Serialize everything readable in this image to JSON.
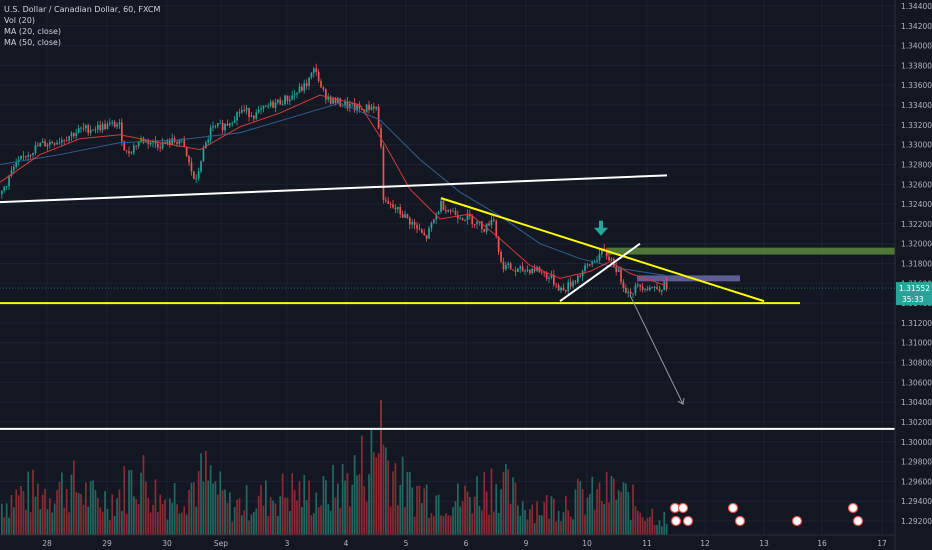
{
  "chart_data": {
    "type": "line",
    "title": "U.S. Dollar / Canadian Dollar, 60, FXCM",
    "indicators": [
      "Vol (20)",
      "MA (20, close)",
      "MA (50, close)"
    ],
    "x_tick_labels": [
      "28",
      "29",
      "30",
      "Sep",
      "3",
      "4",
      "5",
      "6",
      "9",
      "10",
      "11",
      "12",
      "13",
      "16",
      "17"
    ],
    "y_tick_labels": [
      "1.34400",
      "1.34200",
      "1.34000",
      "1.33800",
      "1.33600",
      "1.33400",
      "1.33200",
      "1.33000",
      "1.32800",
      "1.32600",
      "1.32400",
      "1.32200",
      "1.32000",
      "1.31800",
      "1.31600",
      "1.31400",
      "1.31200",
      "1.31000",
      "1.30800",
      "1.30600",
      "1.30400",
      "1.30200",
      "1.30000",
      "1.29800",
      "1.29600",
      "1.29400",
      "1.29200"
    ],
    "ylim": [
      1.292,
      1.344
    ],
    "current_price": "1.31552",
    "countdown": "35:33",
    "price_path": [
      [
        0,
        1.325
      ],
      [
        12,
        1.3275
      ],
      [
        25,
        1.329
      ],
      [
        40,
        1.33
      ],
      [
        60,
        1.3305
      ],
      [
        80,
        1.3315
      ],
      [
        100,
        1.3318
      ],
      [
        118,
        1.3321
      ],
      [
        125,
        1.329
      ],
      [
        140,
        1.3305
      ],
      [
        160,
        1.33
      ],
      [
        180,
        1.3305
      ],
      [
        195,
        1.326
      ],
      [
        200,
        1.3285
      ],
      [
        210,
        1.3315
      ],
      [
        225,
        1.332
      ],
      [
        240,
        1.3335
      ],
      [
        255,
        1.333
      ],
      [
        270,
        1.334
      ],
      [
        290,
        1.3348
      ],
      [
        305,
        1.336
      ],
      [
        315,
        1.3378
      ],
      [
        320,
        1.3355
      ],
      [
        330,
        1.3345
      ],
      [
        345,
        1.334
      ],
      [
        360,
        1.3335
      ],
      [
        375,
        1.334
      ],
      [
        380,
        1.33
      ],
      [
        383,
        1.324
      ],
      [
        395,
        1.3235
      ],
      [
        410,
        1.3222
      ],
      [
        425,
        1.3205
      ],
      [
        440,
        1.324
      ],
      [
        455,
        1.323
      ],
      [
        470,
        1.3225
      ],
      [
        485,
        1.3215
      ],
      [
        492,
        1.323
      ],
      [
        500,
        1.318
      ],
      [
        515,
        1.3172
      ],
      [
        535,
        1.3175
      ],
      [
        550,
        1.3165
      ],
      [
        562,
        1.3152
      ],
      [
        575,
        1.3165
      ],
      [
        590,
        1.318
      ],
      [
        602,
        1.3192
      ],
      [
        612,
        1.3182
      ],
      [
        620,
        1.3165
      ],
      [
        627,
        1.315
      ],
      [
        640,
        1.3158
      ],
      [
        655,
        1.3155
      ],
      [
        665,
        1.3158
      ]
    ],
    "ma_fast": [
      [
        0,
        1.3262
      ],
      [
        40,
        1.329
      ],
      [
        80,
        1.3306
      ],
      [
        120,
        1.331
      ],
      [
        160,
        1.3302
      ],
      [
        200,
        1.3295
      ],
      [
        240,
        1.3318
      ],
      [
        280,
        1.3332
      ],
      [
        320,
        1.335
      ],
      [
        360,
        1.334
      ],
      [
        385,
        1.33
      ],
      [
        410,
        1.3255
      ],
      [
        440,
        1.3225
      ],
      [
        470,
        1.323
      ],
      [
        500,
        1.3205
      ],
      [
        530,
        1.3178
      ],
      [
        560,
        1.3165
      ],
      [
        590,
        1.3172
      ],
      [
        610,
        1.3182
      ],
      [
        630,
        1.317
      ],
      [
        665,
        1.3158
      ]
    ],
    "ma_slow": [
      [
        0,
        1.328
      ],
      [
        60,
        1.329
      ],
      [
        120,
        1.3302
      ],
      [
        180,
        1.3305
      ],
      [
        240,
        1.3312
      ],
      [
        300,
        1.333
      ],
      [
        340,
        1.3342
      ],
      [
        380,
        1.3325
      ],
      [
        420,
        1.3285
      ],
      [
        460,
        1.3252
      ],
      [
        500,
        1.3228
      ],
      [
        540,
        1.32
      ],
      [
        580,
        1.3185
      ],
      [
        620,
        1.3175
      ],
      [
        665,
        1.3168
      ]
    ],
    "trendlines": [
      {
        "color": "#ffffff",
        "from": [
          0,
          1.3242
        ],
        "to": [
          667,
          1.3269
        ]
      },
      {
        "color": "#ffff00",
        "from": [
          441,
          1.3246
        ],
        "to": [
          764,
          1.3142
        ]
      },
      {
        "color": "#ffff00",
        "from": [
          0,
          1.314
        ],
        "to": [
          800,
          1.314
        ]
      },
      {
        "color": "#ffffff",
        "from": [
          560,
          1.3142
        ],
        "to": [
          640,
          1.32
        ]
      },
      {
        "color": "#ffffff",
        "from": [
          0,
          1.3013
        ],
        "to": [
          895,
          1.3013
        ]
      }
    ],
    "zones": [
      {
        "color": "#5b8a3c",
        "from_x": 607,
        "to_x": 895,
        "y_top": 1.3196,
        "y_bottom": 1.3189
      },
      {
        "color": "#6b6aa8",
        "from_x": 637,
        "to_x": 740,
        "y_top": 1.3168,
        "y_bottom": 1.3162
      }
    ],
    "projection_arrow": {
      "from": [
        630,
        1.3148
      ],
      "to": [
        683,
        1.3038
      ]
    },
    "marker_arrow": {
      "x": 601,
      "y": 1.3205,
      "color": "#26a69a"
    },
    "volume_peaks": [
      [
        0,
        50
      ],
      [
        20,
        65
      ],
      [
        45,
        70
      ],
      [
        70,
        80
      ],
      [
        95,
        55
      ],
      [
        115,
        60
      ],
      [
        138,
        100
      ],
      [
        160,
        55
      ],
      [
        185,
        75
      ],
      [
        205,
        92
      ],
      [
        230,
        45
      ],
      [
        255,
        55
      ],
      [
        290,
        70
      ],
      [
        320,
        60
      ],
      [
        345,
        85
      ],
      [
        381,
        138
      ],
      [
        405,
        72
      ],
      [
        430,
        65
      ],
      [
        460,
        55
      ],
      [
        495,
        88
      ],
      [
        520,
        50
      ],
      [
        545,
        45
      ],
      [
        570,
        58
      ],
      [
        595,
        60
      ],
      [
        615,
        70
      ],
      [
        640,
        42
      ],
      [
        665,
        25
      ]
    ]
  }
}
